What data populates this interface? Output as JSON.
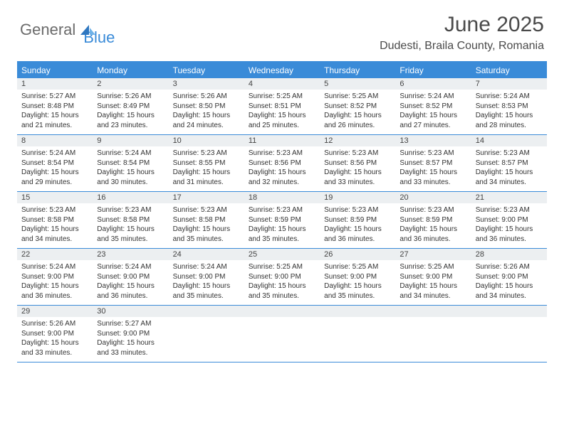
{
  "logo": {
    "textA": "General",
    "textB": "Blue"
  },
  "title": "June 2025",
  "location": "Dudesti, Braila County, Romania",
  "colors": {
    "accent": "#3a8bd8",
    "headerText": "#ffffff",
    "dayNumBg": "#eceff1",
    "bodyText": "#333333",
    "titleText": "#4a4a4a",
    "logoGray": "#6b6b6b"
  },
  "dow": [
    "Sunday",
    "Monday",
    "Tuesday",
    "Wednesday",
    "Thursday",
    "Friday",
    "Saturday"
  ],
  "days": [
    {
      "n": "1",
      "sr": "Sunrise: 5:27 AM",
      "ss": "Sunset: 8:48 PM",
      "d1": "Daylight: 15 hours",
      "d2": "and 21 minutes."
    },
    {
      "n": "2",
      "sr": "Sunrise: 5:26 AM",
      "ss": "Sunset: 8:49 PM",
      "d1": "Daylight: 15 hours",
      "d2": "and 23 minutes."
    },
    {
      "n": "3",
      "sr": "Sunrise: 5:26 AM",
      "ss": "Sunset: 8:50 PM",
      "d1": "Daylight: 15 hours",
      "d2": "and 24 minutes."
    },
    {
      "n": "4",
      "sr": "Sunrise: 5:25 AM",
      "ss": "Sunset: 8:51 PM",
      "d1": "Daylight: 15 hours",
      "d2": "and 25 minutes."
    },
    {
      "n": "5",
      "sr": "Sunrise: 5:25 AM",
      "ss": "Sunset: 8:52 PM",
      "d1": "Daylight: 15 hours",
      "d2": "and 26 minutes."
    },
    {
      "n": "6",
      "sr": "Sunrise: 5:24 AM",
      "ss": "Sunset: 8:52 PM",
      "d1": "Daylight: 15 hours",
      "d2": "and 27 minutes."
    },
    {
      "n": "7",
      "sr": "Sunrise: 5:24 AM",
      "ss": "Sunset: 8:53 PM",
      "d1": "Daylight: 15 hours",
      "d2": "and 28 minutes."
    },
    {
      "n": "8",
      "sr": "Sunrise: 5:24 AM",
      "ss": "Sunset: 8:54 PM",
      "d1": "Daylight: 15 hours",
      "d2": "and 29 minutes."
    },
    {
      "n": "9",
      "sr": "Sunrise: 5:24 AM",
      "ss": "Sunset: 8:54 PM",
      "d1": "Daylight: 15 hours",
      "d2": "and 30 minutes."
    },
    {
      "n": "10",
      "sr": "Sunrise: 5:23 AM",
      "ss": "Sunset: 8:55 PM",
      "d1": "Daylight: 15 hours",
      "d2": "and 31 minutes."
    },
    {
      "n": "11",
      "sr": "Sunrise: 5:23 AM",
      "ss": "Sunset: 8:56 PM",
      "d1": "Daylight: 15 hours",
      "d2": "and 32 minutes."
    },
    {
      "n": "12",
      "sr": "Sunrise: 5:23 AM",
      "ss": "Sunset: 8:56 PM",
      "d1": "Daylight: 15 hours",
      "d2": "and 33 minutes."
    },
    {
      "n": "13",
      "sr": "Sunrise: 5:23 AM",
      "ss": "Sunset: 8:57 PM",
      "d1": "Daylight: 15 hours",
      "d2": "and 33 minutes."
    },
    {
      "n": "14",
      "sr": "Sunrise: 5:23 AM",
      "ss": "Sunset: 8:57 PM",
      "d1": "Daylight: 15 hours",
      "d2": "and 34 minutes."
    },
    {
      "n": "15",
      "sr": "Sunrise: 5:23 AM",
      "ss": "Sunset: 8:58 PM",
      "d1": "Daylight: 15 hours",
      "d2": "and 34 minutes."
    },
    {
      "n": "16",
      "sr": "Sunrise: 5:23 AM",
      "ss": "Sunset: 8:58 PM",
      "d1": "Daylight: 15 hours",
      "d2": "and 35 minutes."
    },
    {
      "n": "17",
      "sr": "Sunrise: 5:23 AM",
      "ss": "Sunset: 8:58 PM",
      "d1": "Daylight: 15 hours",
      "d2": "and 35 minutes."
    },
    {
      "n": "18",
      "sr": "Sunrise: 5:23 AM",
      "ss": "Sunset: 8:59 PM",
      "d1": "Daylight: 15 hours",
      "d2": "and 35 minutes."
    },
    {
      "n": "19",
      "sr": "Sunrise: 5:23 AM",
      "ss": "Sunset: 8:59 PM",
      "d1": "Daylight: 15 hours",
      "d2": "and 36 minutes."
    },
    {
      "n": "20",
      "sr": "Sunrise: 5:23 AM",
      "ss": "Sunset: 8:59 PM",
      "d1": "Daylight: 15 hours",
      "d2": "and 36 minutes."
    },
    {
      "n": "21",
      "sr": "Sunrise: 5:23 AM",
      "ss": "Sunset: 9:00 PM",
      "d1": "Daylight: 15 hours",
      "d2": "and 36 minutes."
    },
    {
      "n": "22",
      "sr": "Sunrise: 5:24 AM",
      "ss": "Sunset: 9:00 PM",
      "d1": "Daylight: 15 hours",
      "d2": "and 36 minutes."
    },
    {
      "n": "23",
      "sr": "Sunrise: 5:24 AM",
      "ss": "Sunset: 9:00 PM",
      "d1": "Daylight: 15 hours",
      "d2": "and 36 minutes."
    },
    {
      "n": "24",
      "sr": "Sunrise: 5:24 AM",
      "ss": "Sunset: 9:00 PM",
      "d1": "Daylight: 15 hours",
      "d2": "and 35 minutes."
    },
    {
      "n": "25",
      "sr": "Sunrise: 5:25 AM",
      "ss": "Sunset: 9:00 PM",
      "d1": "Daylight: 15 hours",
      "d2": "and 35 minutes."
    },
    {
      "n": "26",
      "sr": "Sunrise: 5:25 AM",
      "ss": "Sunset: 9:00 PM",
      "d1": "Daylight: 15 hours",
      "d2": "and 35 minutes."
    },
    {
      "n": "27",
      "sr": "Sunrise: 5:25 AM",
      "ss": "Sunset: 9:00 PM",
      "d1": "Daylight: 15 hours",
      "d2": "and 34 minutes."
    },
    {
      "n": "28",
      "sr": "Sunrise: 5:26 AM",
      "ss": "Sunset: 9:00 PM",
      "d1": "Daylight: 15 hours",
      "d2": "and 34 minutes."
    },
    {
      "n": "29",
      "sr": "Sunrise: 5:26 AM",
      "ss": "Sunset: 9:00 PM",
      "d1": "Daylight: 15 hours",
      "d2": "and 33 minutes."
    },
    {
      "n": "30",
      "sr": "Sunrise: 5:27 AM",
      "ss": "Sunset: 9:00 PM",
      "d1": "Daylight: 15 hours",
      "d2": "and 33 minutes."
    }
  ]
}
